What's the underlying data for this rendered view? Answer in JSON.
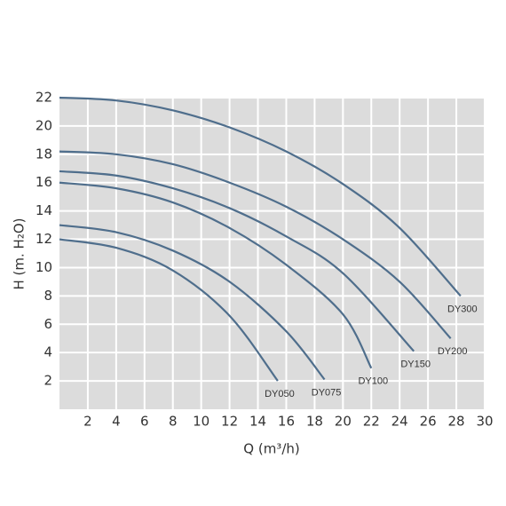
{
  "chart_data": {
    "type": "line",
    "x_label": "Q (m³/h)",
    "y_label": "H (m. H₂O)",
    "xlim": [
      0,
      30
    ],
    "xticks": [
      2,
      4,
      6,
      8,
      10,
      12,
      14,
      16,
      18,
      20,
      22,
      24,
      26,
      28,
      30
    ],
    "ylim": [
      0,
      22
    ],
    "yticks": [
      2,
      4,
      6,
      8,
      10,
      12,
      14,
      16,
      18,
      20,
      22
    ],
    "grid": true,
    "background": "#dcdcdc",
    "grid_color": "#ffffff",
    "series": [
      {
        "name": "DY300",
        "color": "#4f6e8c",
        "x": [
          0,
          4,
          8,
          12,
          16,
          20,
          24,
          28.3
        ],
        "values": [
          22,
          21.8,
          21.1,
          19.9,
          18.2,
          15.9,
          12.8,
          8.0
        ]
      },
      {
        "name": "DY200",
        "color": "#4f6e8c",
        "x": [
          0,
          4,
          8,
          12,
          16,
          20,
          24,
          27.6
        ],
        "values": [
          18.2,
          18.0,
          17.3,
          16.0,
          14.3,
          12.0,
          9.0,
          5.0
        ]
      },
      {
        "name": "DY150",
        "color": "#4f6e8c",
        "x": [
          0,
          4,
          8,
          12,
          16,
          20,
          25
        ],
        "values": [
          16.8,
          16.5,
          15.6,
          14.2,
          12.2,
          9.6,
          4.1
        ]
      },
      {
        "name": "DY100",
        "color": "#4f6e8c",
        "x": [
          0,
          4,
          8,
          12,
          16,
          20,
          22
        ],
        "values": [
          16,
          15.6,
          14.6,
          12.8,
          10.2,
          6.7,
          2.9
        ]
      },
      {
        "name": "DY075",
        "color": "#4f6e8c",
        "x": [
          0,
          4,
          8,
          12,
          16,
          18.7
        ],
        "values": [
          13,
          12.5,
          11.2,
          9.0,
          5.5,
          2.1
        ]
      },
      {
        "name": "DY050",
        "color": "#4f6e8c",
        "x": [
          0,
          4,
          8,
          12,
          15.4
        ],
        "values": [
          12,
          11.4,
          9.8,
          6.6,
          2.0
        ]
      }
    ]
  }
}
